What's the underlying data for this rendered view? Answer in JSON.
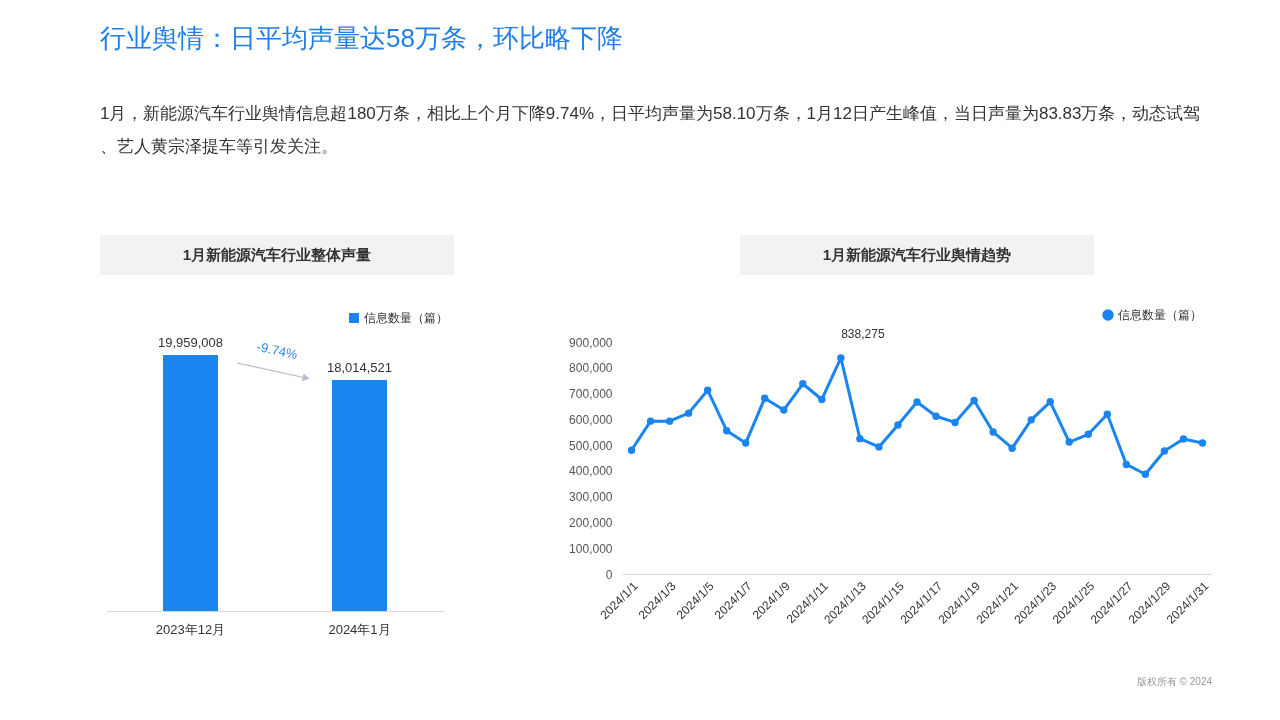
{
  "chart_data": [
    {
      "type": "other",
      "title": "行业舆情：日平均声量达58万条，环比略下降",
      "annotations": [
        "1月，新能源汽车行业舆情信息超180万条，相比上个月下降9.74%，日平均声量为58.10万条，1月12日产生峰值，当日声量为83.83万条，动态试驾、艺人黄宗泽提车等引发关注。"
      ]
    },
    {
      "type": "bar",
      "title": "1月新能源汽车行业整体声量",
      "categories": [
        "2023年12月",
        "2024年1月"
      ],
      "series": [
        {
          "name": "信息数量（篇）",
          "color": "#1a84f0",
          "values": [
            19959008,
            18014521
          ],
          "value_labels": [
            "19,959,008",
            "18,014,521"
          ]
        }
      ],
      "legend": "top right",
      "tick_labels": "x",
      "annotations": [
        "-9.74%"
      ]
    },
    {
      "type": "line",
      "title": "1月新能源汽车行业舆情趋势",
      "categories": [
        "2024/1/1",
        null,
        "2024/1/3",
        null,
        "2024/1/5",
        null,
        "2024/1/7",
        null,
        "2024/1/9",
        null,
        "2024/1/11",
        null,
        "2024/1/13",
        null,
        "2024/1/15",
        null,
        "2024/1/17",
        null,
        "2024/1/19",
        null,
        "2024/1/21",
        null,
        "2024/1/23",
        null,
        "2024/1/25",
        null,
        "2024/1/27",
        null,
        "2024/1/29",
        null,
        "2024/1/31"
      ],
      "series": [
        {
          "name": "信息数量（篇）",
          "color": "#1a84f0",
          "values": [
            480000,
            593000,
            593000,
            624000,
            713000,
            556000,
            508000,
            682000,
            636000,
            738000,
            677000,
            838275,
            525000,
            493000,
            578000,
            667000,
            612000,
            588000,
            673000,
            551000,
            488000,
            598000,
            668000,
            512000,
            542000,
            620000,
            425000,
            387000,
            477000,
            524000,
            508000
          ],
          "value_labels": [
            null,
            null,
            null,
            null,
            null,
            null,
            null,
            null,
            null,
            null,
            null,
            "838,275",
            null,
            null,
            null,
            null,
            null,
            null,
            null,
            null,
            null,
            null,
            null,
            null,
            null,
            null,
            null,
            null,
            null,
            null,
            null
          ]
        }
      ],
      "ylim": [
        0,
        900000
      ],
      "yticks": [
        0,
        {
          "value": 100000,
          "label": "100,000"
        },
        {
          "value": 200000,
          "label": "200,000"
        },
        {
          "value": 300000,
          "label": "300,000"
        },
        {
          "value": 400000,
          "label": "400,000"
        },
        {
          "value": 500000,
          "label": "500,000"
        },
        {
          "value": 600000,
          "label": "600,000"
        },
        {
          "value": 700000,
          "label": "700,000"
        },
        {
          "value": 800000,
          "label": "800,000"
        },
        {
          "value": 900000,
          "label": "900,000"
        }
      ],
      "grid": false,
      "legend": "top right",
      "marker": "circle",
      "line_style": "solid",
      "annotations": [
        "版权所有 © 2024"
      ]
    }
  ]
}
